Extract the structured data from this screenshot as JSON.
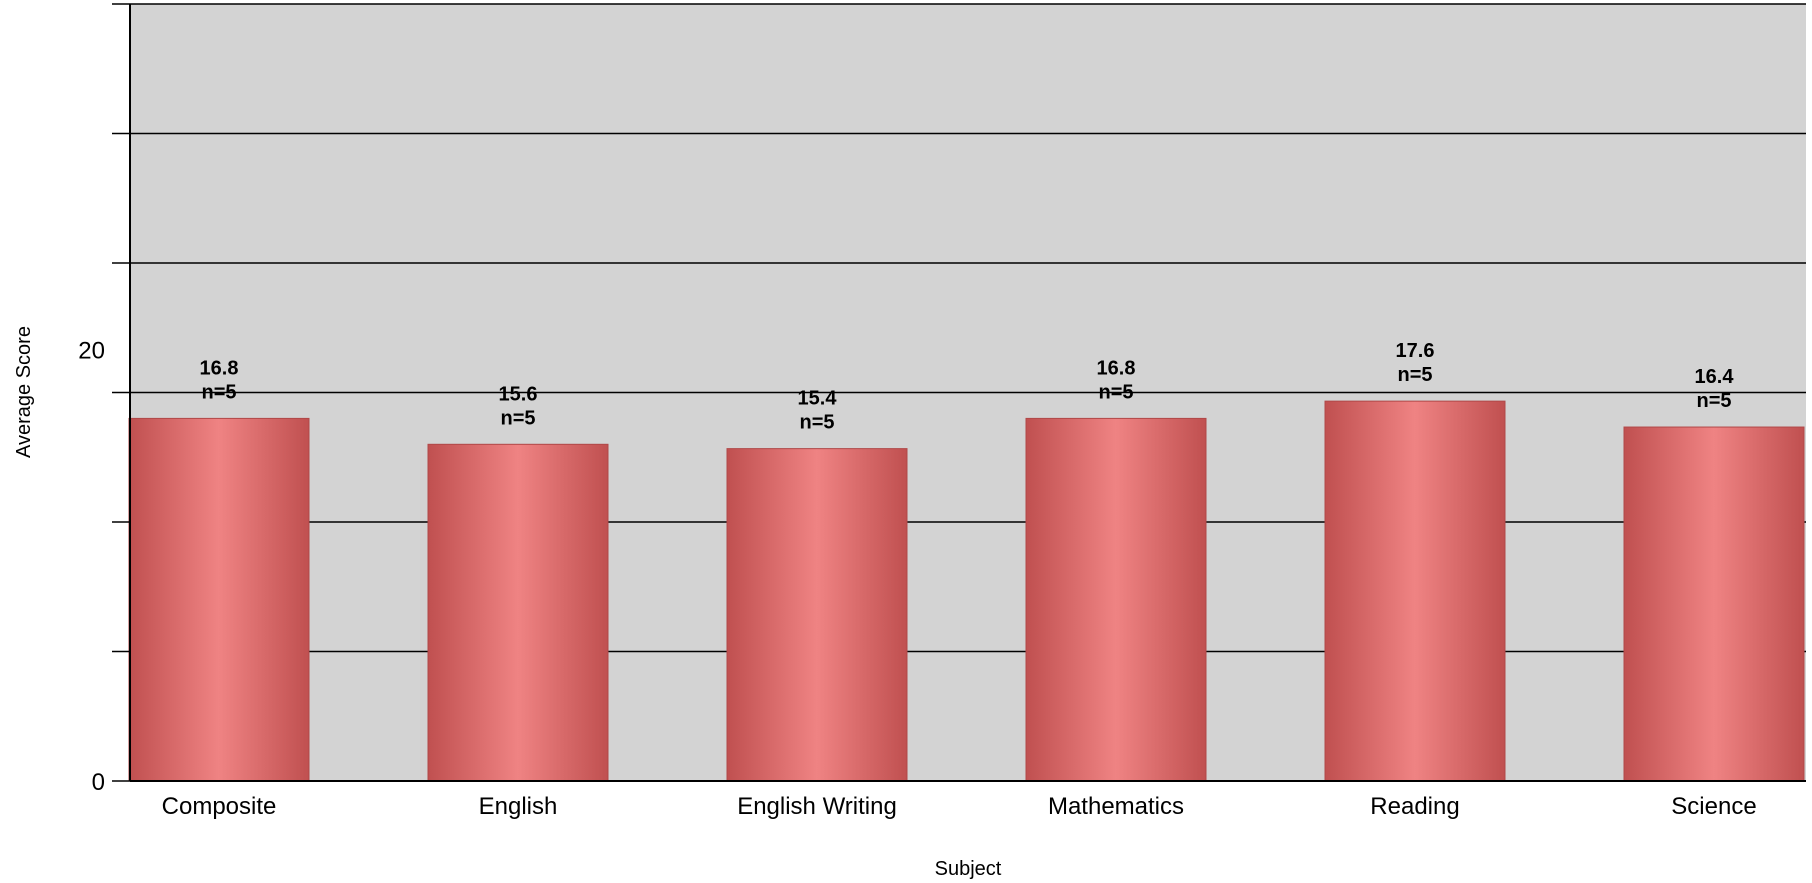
{
  "chart_data": {
    "type": "bar",
    "title": "",
    "xlabel": "Subject",
    "ylabel": "Average Score",
    "categories": [
      "Composite",
      "English",
      "English Writing",
      "Mathematics",
      "Reading",
      "Science"
    ],
    "values": [
      16.8,
      15.6,
      15.4,
      16.8,
      17.6,
      16.4
    ],
    "data_labels": [
      "16.8",
      "15.6",
      "15.4",
      "16.8",
      "17.6",
      "16.4"
    ],
    "count_labels": [
      "n=5",
      "n=5",
      "n=5",
      "n=5",
      "n=5",
      "n=5"
    ],
    "ylim": [
      0,
      36
    ],
    "gridlines": [
      6,
      12,
      18,
      24,
      30,
      36
    ],
    "yticks": [
      {
        "value": 0,
        "label": "0"
      },
      {
        "value": 20,
        "label": "20"
      }
    ],
    "grid": true,
    "legend": "none",
    "colors": {
      "plot_background": "#d3d3d3",
      "bar_edge": "#c05050",
      "bar_center": "#ef8383",
      "bar_outline": "#b04848",
      "gridline": "#000000"
    }
  }
}
